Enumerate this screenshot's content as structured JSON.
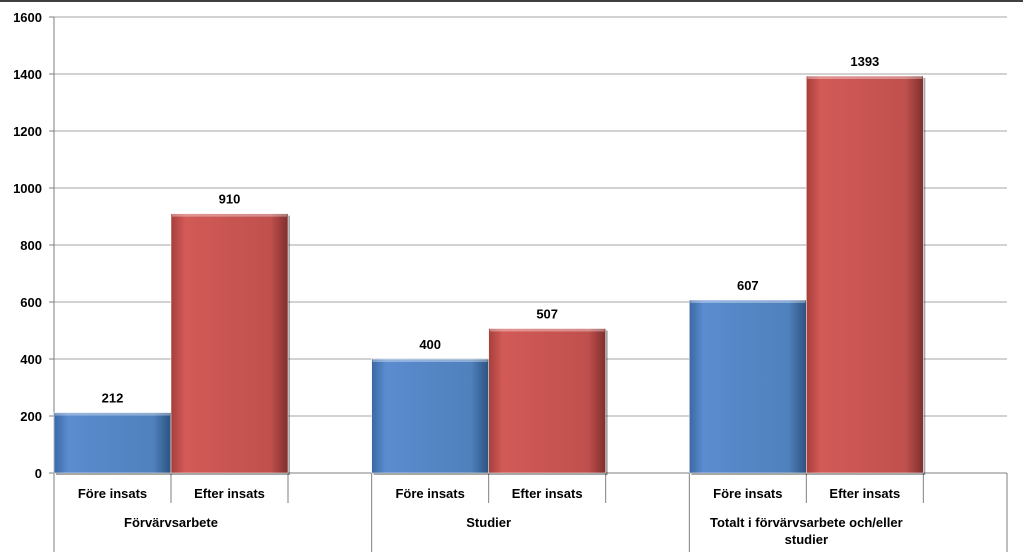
{
  "chart_data": {
    "type": "bar",
    "title": "",
    "xlabel": "",
    "ylabel": "",
    "ylim": [
      0,
      1600
    ],
    "yticks": [
      0,
      200,
      400,
      600,
      800,
      1000,
      1200,
      1400,
      1600
    ],
    "grid": true,
    "legend": "none",
    "groups": [
      {
        "label_lines": [
          "Förvärvsarbete"
        ],
        "bars": [
          {
            "label": "Före insats",
            "value": 212,
            "color": "#4f81bd"
          },
          {
            "label": "Efter insats",
            "value": 910,
            "color": "#c0504d"
          }
        ]
      },
      {
        "label_lines": [
          "Studier"
        ],
        "bars": [
          {
            "label": "Före insats",
            "value": 400,
            "color": "#4f81bd"
          },
          {
            "label": "Efter insats",
            "value": 507,
            "color": "#c0504d"
          }
        ]
      },
      {
        "label_lines": [
          "Totalt i förvärvsarbete och/eller",
          "studier"
        ],
        "bars": [
          {
            "label": "Före insats",
            "value": 607,
            "color": "#4f81bd"
          },
          {
            "label": "Efter insats",
            "value": 1393,
            "color": "#c0504d"
          }
        ]
      }
    ]
  }
}
